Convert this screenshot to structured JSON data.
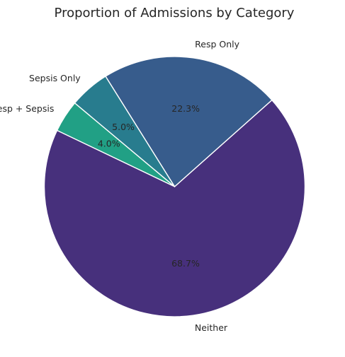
{
  "chart_data": {
    "type": "pie",
    "title": "Proportion of Admissions by Category",
    "start_angle_deg": 140,
    "direction": "counterclockwise",
    "slices": [
      {
        "label": "Resp + Sepsis",
        "value": 4.0,
        "pct_label": "4.0%",
        "color": "#21a085"
      },
      {
        "label": "Neither",
        "value": 68.7,
        "pct_label": "68.7%",
        "color": "#47307c"
      },
      {
        "label": "Resp Only",
        "value": 22.3,
        "pct_label": "22.3%",
        "color": "#375c8c"
      },
      {
        "label": "Sepsis Only",
        "value": 5.0,
        "pct_label": "5.0%",
        "color": "#287c8e"
      }
    ]
  }
}
